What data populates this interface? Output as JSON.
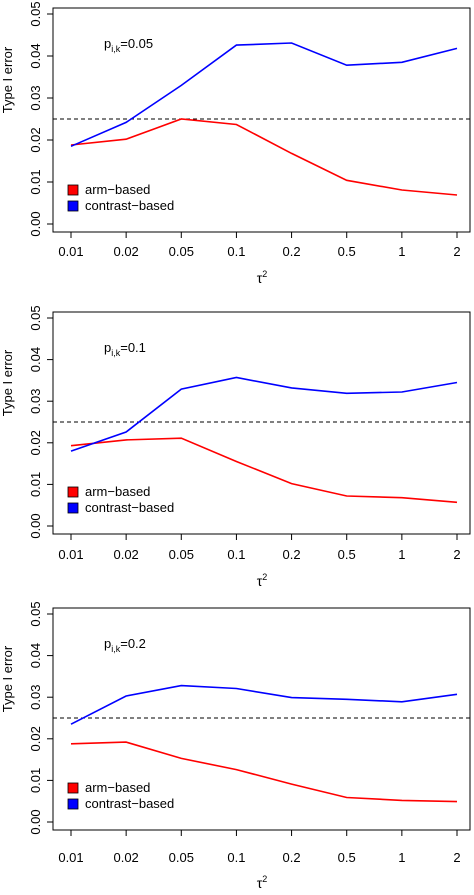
{
  "chart_data": [
    {
      "type": "line",
      "annotation": {
        "base": "p",
        "sub": "i,k",
        "value": "=0.05"
      },
      "xlabel": {
        "base": "τ",
        "sup": "2"
      },
      "ylabel": "Type I error",
      "categories": [
        "0.01",
        "0.02",
        "0.05",
        "0.1",
        "0.2",
        "0.5",
        "1",
        "2"
      ],
      "ylim": [
        0,
        0.05
      ],
      "yticks": [
        "0.00",
        "0.01",
        "0.02",
        "0.03",
        "0.04",
        "0.05"
      ],
      "reference_line": 0.025,
      "legend_position": "bottom-left",
      "series": [
        {
          "name": "arm−based",
          "color": "#ff0000",
          "values": [
            0.0188,
            0.0202,
            0.025,
            0.0237,
            0.0168,
            0.0104,
            0.0081,
            0.0069
          ]
        },
        {
          "name": "contrast−based",
          "color": "#0000ff",
          "values": [
            0.0185,
            0.0242,
            0.033,
            0.0426,
            0.0431,
            0.0378,
            0.0385,
            0.0418
          ]
        }
      ]
    },
    {
      "type": "line",
      "annotation": {
        "base": "p",
        "sub": "i,k",
        "value": "=0.1"
      },
      "xlabel": {
        "base": "τ",
        "sup": "2"
      },
      "ylabel": "Type I error",
      "categories": [
        "0.01",
        "0.02",
        "0.05",
        "0.1",
        "0.2",
        "0.5",
        "1",
        "2"
      ],
      "ylim": [
        0,
        0.05
      ],
      "yticks": [
        "0.00",
        "0.01",
        "0.02",
        "0.03",
        "0.04",
        "0.05"
      ],
      "reference_line": 0.025,
      "legend_position": "bottom-left",
      "series": [
        {
          "name": "arm−based",
          "color": "#ff0000",
          "values": [
            0.0193,
            0.0207,
            0.0211,
            0.0155,
            0.0102,
            0.0072,
            0.0068,
            0.0057
          ]
        },
        {
          "name": "contrast−based",
          "color": "#0000ff",
          "values": [
            0.018,
            0.0226,
            0.0329,
            0.0357,
            0.0332,
            0.0319,
            0.0322,
            0.0345
          ]
        }
      ]
    },
    {
      "type": "line",
      "annotation": {
        "base": "p",
        "sub": "i,k",
        "value": "=0.2"
      },
      "xlabel": {
        "base": "τ",
        "sup": "2"
      },
      "ylabel": "Type I error",
      "categories": [
        "0.01",
        "0.02",
        "0.05",
        "0.1",
        "0.2",
        "0.5",
        "1",
        "2"
      ],
      "ylim": [
        0,
        0.05
      ],
      "yticks": [
        "0.00",
        "0.01",
        "0.02",
        "0.03",
        "0.04",
        "0.05"
      ],
      "reference_line": 0.025,
      "legend_position": "bottom-left",
      "series": [
        {
          "name": "arm−based",
          "color": "#ff0000",
          "values": [
            0.0188,
            0.0192,
            0.0153,
            0.0126,
            0.0091,
            0.0059,
            0.0052,
            0.0049
          ]
        },
        {
          "name": "contrast−based",
          "color": "#0000ff",
          "values": [
            0.0235,
            0.0303,
            0.0328,
            0.0321,
            0.0299,
            0.0295,
            0.0289,
            0.0307
          ]
        }
      ]
    }
  ]
}
